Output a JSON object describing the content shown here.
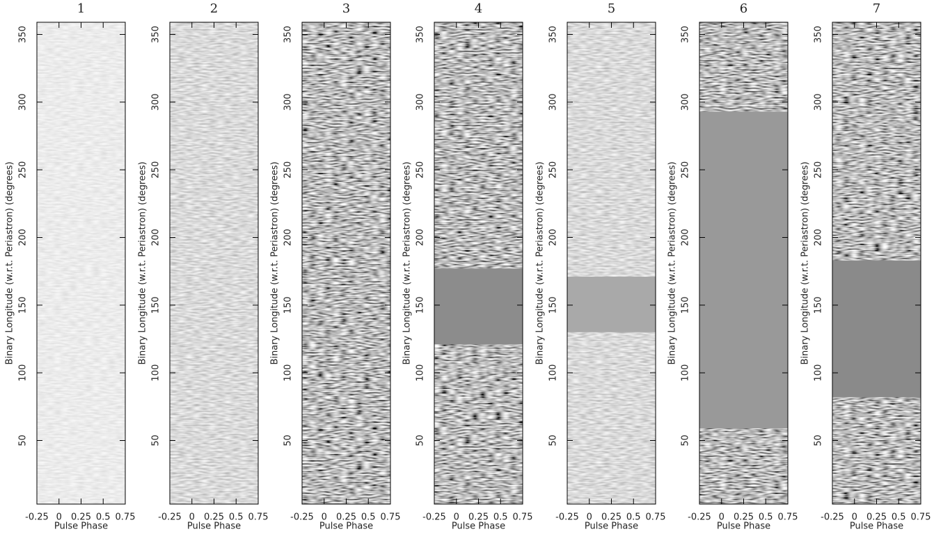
{
  "chart_data": [
    {
      "type": "heatmap",
      "title": "1",
      "xlabel": "Pulse Phase",
      "ylabel": "Binary Longitude (w.r.t. Periastron) (degrees)",
      "xlim": [
        -0.25,
        0.75
      ],
      "ylim": [
        3,
        359
      ],
      "xticks": [
        -0.25,
        0,
        0.25,
        0.5,
        0.75
      ],
      "yticks": [
        50,
        100,
        150,
        200,
        250,
        300,
        350
      ]
    },
    {
      "type": "heatmap",
      "title": "2",
      "xlabel": "Pulse Phase",
      "ylabel": "Binary Longitude (w.r.t. Periastron) (degrees)",
      "xlim": [
        -0.25,
        0.75
      ],
      "ylim": [
        3,
        359
      ],
      "xticks": [
        -0.25,
        0,
        0.25,
        0.5,
        0.75
      ],
      "yticks": [
        50,
        100,
        150,
        200,
        250,
        300,
        350
      ]
    },
    {
      "type": "heatmap",
      "title": "3",
      "xlabel": "Pulse Phase",
      "ylabel": "Binary Longitude (w.r.t. Periastron) (degrees)",
      "xlim": [
        -0.25,
        0.75
      ],
      "ylim": [
        3,
        359
      ],
      "xticks": [
        -0.25,
        0,
        0.25,
        0.5,
        0.75
      ],
      "yticks": [
        50,
        100,
        150,
        200,
        250,
        300,
        350
      ]
    },
    {
      "type": "heatmap",
      "title": "4",
      "xlabel": "Pulse Phase",
      "ylabel": "Binary Longitude (w.r.t. Periastron) (degrees)",
      "xlim": [
        -0.25,
        0.75
      ],
      "ylim": [
        3,
        359
      ],
      "xticks": [
        -0.25,
        0,
        0.25,
        0.5,
        0.75
      ],
      "yticks": [
        50,
        100,
        150,
        200,
        250,
        300,
        350
      ],
      "gaps": [
        [
          121,
          177
        ]
      ],
      "gap_color": "#8c8c8c"
    },
    {
      "type": "heatmap",
      "title": "5",
      "xlabel": "Pulse Phase",
      "ylabel": "Binary Longitude (w.r.t. Periastron) (degrees)",
      "xlim": [
        -0.25,
        0.75
      ],
      "ylim": [
        3,
        359
      ],
      "xticks": [
        -0.25,
        0,
        0.25,
        0.5,
        0.75
      ],
      "yticks": [
        50,
        100,
        150,
        200,
        250,
        300,
        350
      ],
      "gaps": [
        [
          130,
          171
        ]
      ],
      "gap_color": "#a9a9a9"
    },
    {
      "type": "heatmap",
      "title": "6",
      "xlabel": "Pulse Phase",
      "ylabel": "Binary Longitude (w.r.t. Periastron) (degrees)",
      "xlim": [
        -0.25,
        0.75
      ],
      "ylim": [
        3,
        359
      ],
      "xticks": [
        -0.25,
        0,
        0.25,
        0.5,
        0.75
      ],
      "yticks": [
        50,
        100,
        150,
        200,
        250,
        300,
        350
      ],
      "gaps": [
        [
          59,
          293
        ]
      ],
      "gap_color": "#999999"
    },
    {
      "type": "heatmap",
      "title": "7",
      "xlabel": "Pulse Phase",
      "ylabel": "Binary Longitude (w.r.t. Periastron) (degrees)",
      "xlim": [
        -0.25,
        0.75
      ],
      "ylim": [
        3,
        359
      ],
      "xticks": [
        -0.25,
        0,
        0.25,
        0.5,
        0.75
      ],
      "yticks": [
        50,
        100,
        150,
        200,
        250,
        300,
        350
      ],
      "gaps": [
        [
          82,
          183
        ]
      ],
      "gap_color": "#8a8a8a"
    }
  ]
}
